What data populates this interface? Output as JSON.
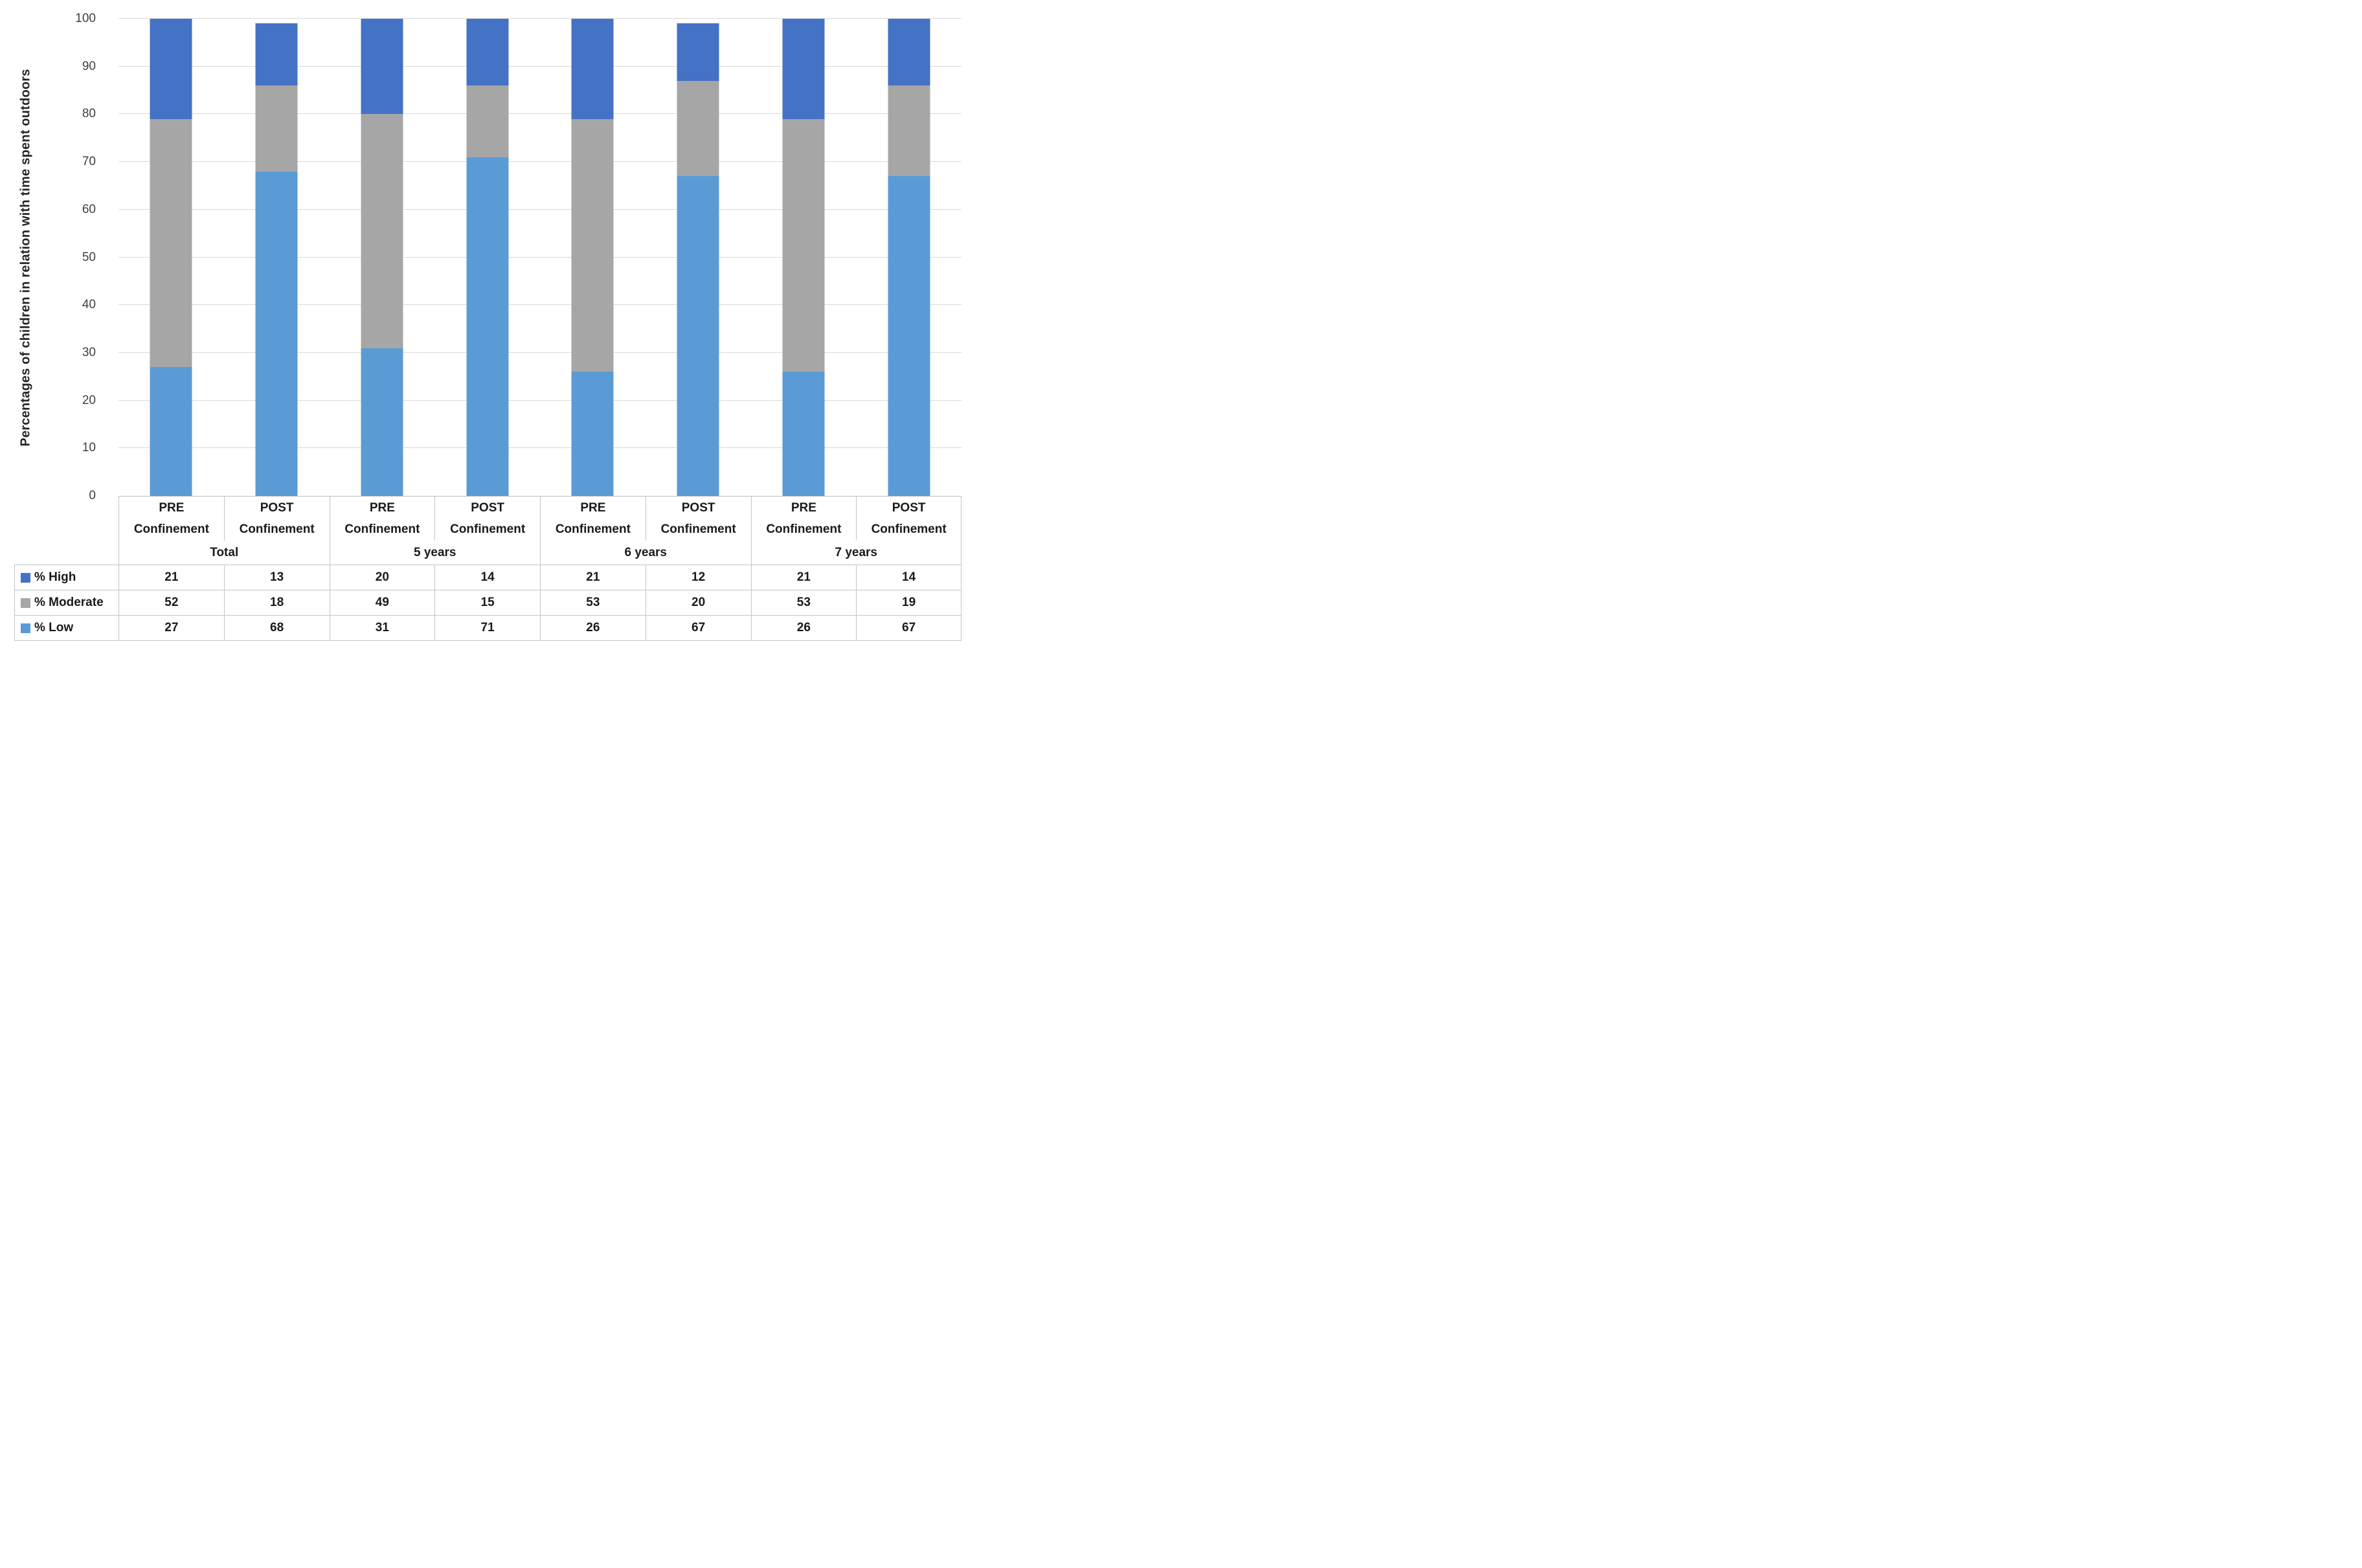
{
  "chart_data": {
    "type": "bar",
    "stacked": true,
    "title": "",
    "ylabel": "Percentages of children in relation with time spent outdoors",
    "xlabel": "",
    "ylim": [
      0,
      100
    ],
    "y_ticks": [
      0,
      10,
      20,
      30,
      40,
      50,
      60,
      70,
      80,
      90,
      100
    ],
    "grid": true,
    "legend_position": "table-row-headers-left",
    "categories": [
      "PRE Confinement",
      "POST Confinement",
      "PRE Confinement",
      "POST Confinement",
      "PRE Confinement",
      "POST Confinement",
      "PRE Confinement",
      "POST Confinement"
    ],
    "groups": [
      {
        "label": "Total",
        "span": 2
      },
      {
        "label": "5 years",
        "span": 2
      },
      {
        "label": "6 years",
        "span": 2
      },
      {
        "label": "7 years",
        "span": 2
      }
    ],
    "series": [
      {
        "name": "% High",
        "color": "#4472C4",
        "values": [
          21,
          13,
          20,
          14,
          21,
          12,
          21,
          14
        ]
      },
      {
        "name": "% Moderate",
        "color": "#A6A6A6",
        "values": [
          52,
          18,
          49,
          15,
          53,
          20,
          53,
          19
        ]
      },
      {
        "name": "% Low",
        "color": "#5B9BD5",
        "values": [
          27,
          68,
          31,
          71,
          26,
          67,
          26,
          67
        ]
      }
    ],
    "stack_order_bottom_to_top": [
      "% Low",
      "% Moderate",
      "% High"
    ]
  },
  "table": {
    "category_line1": [
      "PRE",
      "POST",
      "PRE",
      "POST",
      "PRE",
      "POST",
      "PRE",
      "POST"
    ],
    "category_line2": "Confinement"
  },
  "colors": {
    "high": "#4472C4",
    "moderate": "#A6A6A6",
    "low": "#5B9BD5",
    "gridline": "#D9D9D9",
    "table_border": "#C4C4C4",
    "text": "#1A1A1A"
  }
}
